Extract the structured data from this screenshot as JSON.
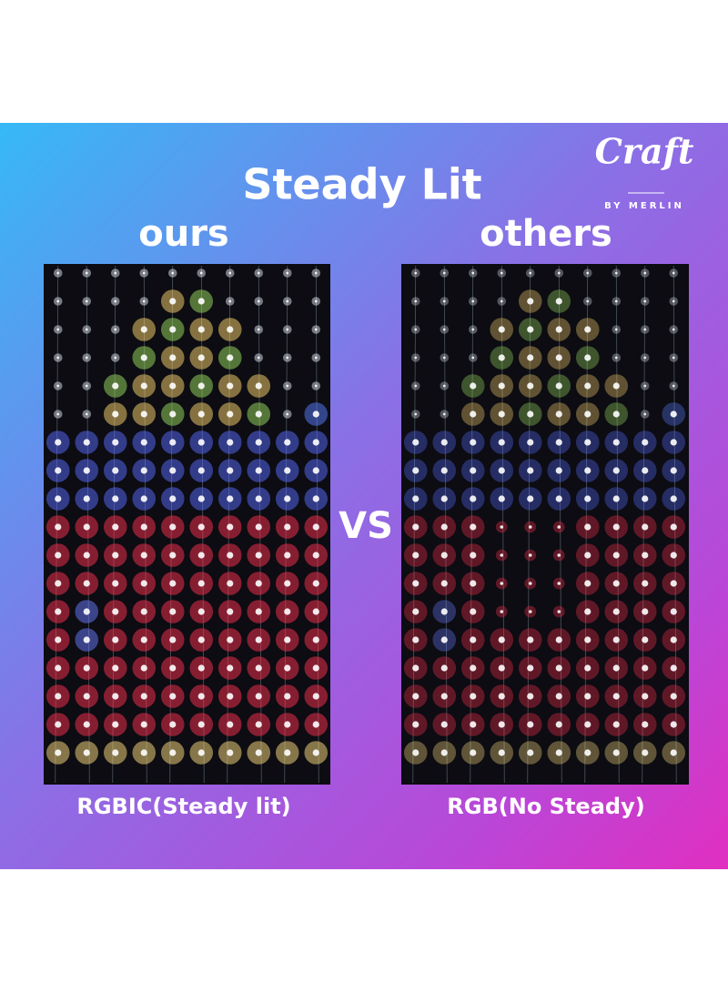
{
  "header": {
    "title": "Steady Lit",
    "logo": "Craft",
    "logo_sub": "BY MERLIN"
  },
  "vs": "VS",
  "panels": [
    {
      "label": "ours",
      "caption": "RGBIC(Steady lit)"
    },
    {
      "label": "others",
      "caption": "RGB(No Steady)"
    }
  ]
}
